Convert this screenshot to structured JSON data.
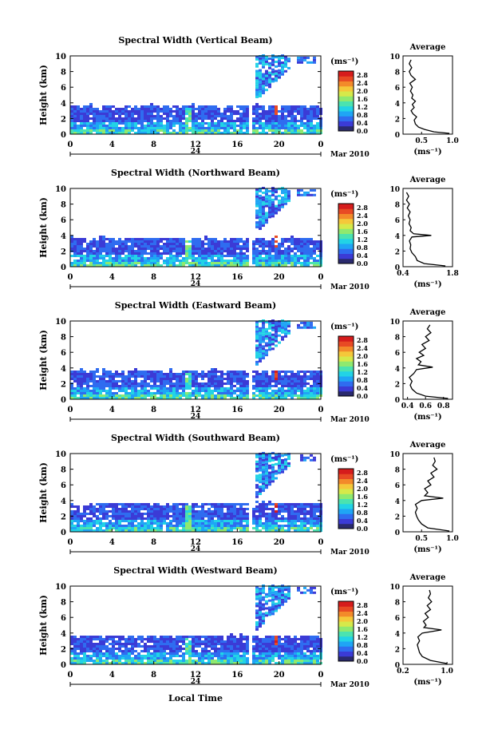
{
  "figure": {
    "xlabel": "Local Time",
    "colors": {
      "colormap": [
        "#2a2a6e",
        "#3b3bd6",
        "#2f6cf0",
        "#1fa5f5",
        "#22d3e6",
        "#4be3b0",
        "#8fe96f",
        "#d6e94a",
        "#f5c83a",
        "#f38a2a",
        "#e84a24",
        "#d61c1c"
      ],
      "line": "#000000",
      "background": "#ffffff"
    }
  },
  "chart_data": [
    {
      "type": "heatmap",
      "title": "Spectral Width (Vertical Beam)",
      "ylabel": "Height (km)",
      "xlim": [
        0,
        24
      ],
      "ylim": [
        0,
        10
      ],
      "x_ticks": [
        "0",
        "4",
        "8",
        "12",
        "16",
        "20",
        "0"
      ],
      "y_ticks": [
        "0",
        "2",
        "4",
        "6",
        "8",
        "10"
      ],
      "date_label": "24",
      "month_label": "Mar 2010",
      "colorbar": {
        "unit": "(ms⁻¹)",
        "ticks": [
          "0.0",
          "0.4",
          "0.8",
          "1.2",
          "1.6",
          "2.0",
          "2.4",
          "2.8"
        ],
        "range": [
          0,
          3.0
        ]
      },
      "average": {
        "title": "Average",
        "xlabel": "(ms⁻¹)",
        "x_ticks": [
          "0.5",
          "1.0"
        ],
        "xlim": [
          0.2,
          1.0
        ],
        "profile": [
          [
            0.95,
            0.1
          ],
          [
            0.7,
            0.3
          ],
          [
            0.55,
            0.6
          ],
          [
            0.45,
            0.9
          ],
          [
            0.4,
            1.3
          ],
          [
            0.38,
            1.8
          ],
          [
            0.42,
            2.2
          ],
          [
            0.36,
            2.6
          ],
          [
            0.33,
            3.0
          ],
          [
            0.38,
            3.4
          ],
          [
            0.35,
            3.8
          ],
          [
            0.4,
            4.2
          ],
          [
            0.34,
            4.6
          ],
          [
            0.36,
            5.0
          ],
          [
            0.32,
            5.5
          ],
          [
            0.35,
            6.0
          ],
          [
            0.31,
            6.5
          ],
          [
            0.4,
            7.0
          ],
          [
            0.33,
            7.5
          ],
          [
            0.3,
            8.0
          ],
          [
            0.34,
            8.5
          ],
          [
            0.3,
            9.0
          ],
          [
            0.33,
            9.5
          ]
        ]
      }
    },
    {
      "type": "heatmap",
      "title": "Spectral Width (Northward Beam)",
      "ylabel": "Height (km)",
      "xlim": [
        0,
        24
      ],
      "ylim": [
        0,
        10
      ],
      "x_ticks": [
        "0",
        "4",
        "8",
        "12",
        "16",
        "20",
        "0"
      ],
      "y_ticks": [
        "0",
        "2",
        "4",
        "6",
        "8",
        "10"
      ],
      "date_label": "24",
      "month_label": "Mar 2010",
      "colorbar": {
        "unit": "(ms⁻¹)",
        "ticks": [
          "0.0",
          "0.4",
          "0.8",
          "1.2",
          "1.6",
          "2.0",
          "2.4",
          "2.8"
        ],
        "range": [
          0,
          3.0
        ]
      },
      "average": {
        "title": "Average",
        "xlabel": "(ms⁻¹)",
        "x_ticks": [
          "0.4",
          "1.8"
        ],
        "xlim": [
          0.4,
          1.8
        ],
        "profile": [
          [
            1.6,
            0.1
          ],
          [
            1.0,
            0.4
          ],
          [
            0.8,
            0.8
          ],
          [
            0.75,
            1.3
          ],
          [
            0.65,
            1.8
          ],
          [
            0.6,
            2.3
          ],
          [
            0.62,
            2.8
          ],
          [
            0.58,
            3.3
          ],
          [
            0.65,
            3.8
          ],
          [
            1.2,
            4.0
          ],
          [
            0.7,
            4.2
          ],
          [
            0.6,
            4.6
          ],
          [
            0.63,
            5.0
          ],
          [
            0.57,
            5.5
          ],
          [
            0.6,
            6.0
          ],
          [
            0.55,
            6.5
          ],
          [
            0.6,
            7.0
          ],
          [
            0.52,
            7.5
          ],
          [
            0.58,
            8.0
          ],
          [
            0.5,
            8.5
          ],
          [
            0.56,
            9.0
          ],
          [
            0.5,
            9.5
          ]
        ]
      }
    },
    {
      "type": "heatmap",
      "title": "Spectral Width (Eastward Beam)",
      "ylabel": "Height (km)",
      "xlim": [
        0,
        24
      ],
      "ylim": [
        0,
        10
      ],
      "x_ticks": [
        "0",
        "4",
        "8",
        "12",
        "16",
        "20",
        "0"
      ],
      "y_ticks": [
        "0",
        "2",
        "4",
        "6",
        "8",
        "10"
      ],
      "date_label": "24",
      "month_label": "Mar 2010",
      "colorbar": {
        "unit": "(ms⁻¹)",
        "ticks": [
          "0.0",
          "0.4",
          "0.8",
          "1.2",
          "1.6",
          "2.0",
          "2.4",
          "2.8"
        ],
        "range": [
          0,
          3.0
        ]
      },
      "average": {
        "title": "Average",
        "xlabel": "(ms⁻¹)",
        "x_ticks": [
          "0.4",
          "0.6",
          "0.8"
        ],
        "xlim": [
          0.35,
          0.9
        ],
        "profile": [
          [
            0.85,
            0.1
          ],
          [
            0.6,
            0.4
          ],
          [
            0.5,
            0.8
          ],
          [
            0.45,
            1.3
          ],
          [
            0.43,
            1.8
          ],
          [
            0.45,
            2.3
          ],
          [
            0.42,
            2.8
          ],
          [
            0.47,
            3.3
          ],
          [
            0.5,
            3.8
          ],
          [
            0.68,
            4.1
          ],
          [
            0.52,
            4.4
          ],
          [
            0.55,
            4.8
          ],
          [
            0.5,
            5.2
          ],
          [
            0.58,
            5.6
          ],
          [
            0.53,
            6.0
          ],
          [
            0.6,
            6.5
          ],
          [
            0.56,
            7.0
          ],
          [
            0.64,
            7.5
          ],
          [
            0.6,
            8.0
          ],
          [
            0.66,
            8.5
          ],
          [
            0.62,
            9.0
          ],
          [
            0.65,
            9.5
          ]
        ]
      }
    },
    {
      "type": "heatmap",
      "title": "Spectral Width (Southward Beam)",
      "ylabel": "Height (km)",
      "xlim": [
        0,
        24
      ],
      "ylim": [
        0,
        10
      ],
      "x_ticks": [
        "0",
        "4",
        "8",
        "12",
        "16",
        "20",
        "0"
      ],
      "y_ticks": [
        "0",
        "2",
        "4",
        "6",
        "8",
        "10"
      ],
      "date_label": "24",
      "month_label": "Mar 2010",
      "colorbar": {
        "unit": "(ms⁻¹)",
        "ticks": [
          "0.0",
          "0.4",
          "0.8",
          "1.2",
          "1.6",
          "2.0",
          "2.4",
          "2.8"
        ],
        "range": [
          0,
          3.0
        ]
      },
      "average": {
        "title": "Average",
        "xlabel": "(ms⁻¹)",
        "x_ticks": [
          "0.5",
          "1.0"
        ],
        "xlim": [
          0.2,
          1.0
        ],
        "profile": [
          [
            0.95,
            0.1
          ],
          [
            0.6,
            0.5
          ],
          [
            0.5,
            1.0
          ],
          [
            0.45,
            1.5
          ],
          [
            0.42,
            2.0
          ],
          [
            0.4,
            2.5
          ],
          [
            0.43,
            3.0
          ],
          [
            0.4,
            3.5
          ],
          [
            0.5,
            4.0
          ],
          [
            0.85,
            4.3
          ],
          [
            0.55,
            4.6
          ],
          [
            0.6,
            5.0
          ],
          [
            0.55,
            5.5
          ],
          [
            0.65,
            6.0
          ],
          [
            0.6,
            6.5
          ],
          [
            0.7,
            7.0
          ],
          [
            0.65,
            7.5
          ],
          [
            0.75,
            8.0
          ],
          [
            0.68,
            8.5
          ],
          [
            0.72,
            9.0
          ],
          [
            0.7,
            9.5
          ]
        ]
      }
    },
    {
      "type": "heatmap",
      "title": "Spectral Width (Westward Beam)",
      "ylabel": "Height (km)",
      "xlim": [
        0,
        24
      ],
      "ylim": [
        0,
        10
      ],
      "x_ticks": [
        "0",
        "4",
        "8",
        "12",
        "16",
        "20",
        "0"
      ],
      "y_ticks": [
        "0",
        "2",
        "4",
        "6",
        "8",
        "10"
      ],
      "date_label": "24",
      "month_label": "Mar 2010",
      "colorbar": {
        "unit": "(ms⁻¹)",
        "ticks": [
          "0.0",
          "0.4",
          "0.8",
          "1.2",
          "1.6",
          "2.0",
          "2.4",
          "2.8"
        ],
        "range": [
          0,
          3.0
        ]
      },
      "average": {
        "title": "Average",
        "xlabel": "(ms⁻¹)",
        "x_ticks": [
          "0.2",
          "1.0"
        ],
        "xlim": [
          0.2,
          1.1
        ],
        "profile": [
          [
            1.0,
            0.1
          ],
          [
            0.7,
            0.5
          ],
          [
            0.55,
            1.0
          ],
          [
            0.5,
            1.5
          ],
          [
            0.48,
            2.0
          ],
          [
            0.46,
            2.5
          ],
          [
            0.5,
            3.0
          ],
          [
            0.47,
            3.5
          ],
          [
            0.55,
            4.0
          ],
          [
            0.9,
            4.4
          ],
          [
            0.58,
            4.7
          ],
          [
            0.62,
            5.0
          ],
          [
            0.57,
            5.5
          ],
          [
            0.66,
            6.0
          ],
          [
            0.6,
            6.5
          ],
          [
            0.7,
            7.0
          ],
          [
            0.64,
            7.5
          ],
          [
            0.72,
            8.0
          ],
          [
            0.66,
            8.5
          ],
          [
            0.7,
            9.0
          ],
          [
            0.68,
            9.5
          ]
        ]
      }
    }
  ]
}
